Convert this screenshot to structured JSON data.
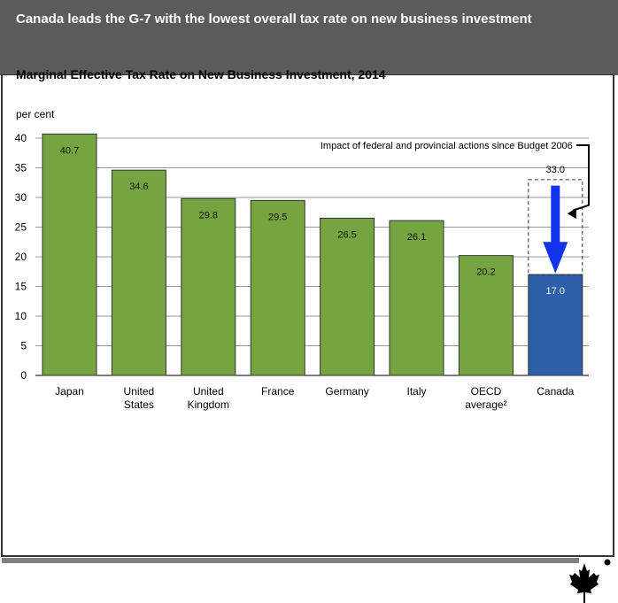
{
  "header": {
    "title": "Canada leads the G-7 with the lowest overall tax rate on new business investment"
  },
  "chart_data": {
    "type": "bar",
    "title": "Marginal Effective Tax Rate on New Business Investment, 2014",
    "ylabel": "per cent",
    "ylim": [
      0,
      40
    ],
    "yticks": [
      0,
      5,
      10,
      15,
      20,
      25,
      30,
      35,
      40
    ],
    "grid": true,
    "categories": [
      [
        "Japan"
      ],
      [
        "United",
        "States"
      ],
      [
        "United",
        "Kingdom"
      ],
      [
        "France"
      ],
      [
        "Germany"
      ],
      [
        "Italy"
      ],
      [
        "OECD",
        "average²"
      ],
      [
        "Canada"
      ]
    ],
    "values": [
      40.7,
      34.6,
      29.8,
      29.5,
      26.5,
      26.1,
      20.2,
      17.0
    ],
    "value_labels": [
      "40.7",
      "34.6",
      "29.8",
      "29.5",
      "26.5",
      "26.1",
      "20.2",
      "17.0"
    ],
    "colors": {
      "default": "#76a441",
      "highlight": "#2d5fa8",
      "arrow": "#1133ee"
    },
    "highlight_index": 7,
    "annotation": {
      "text": "Impact of federal and provincial actions since Budget 2006",
      "prior_value": 33.0,
      "prior_label": "33.0"
    }
  }
}
